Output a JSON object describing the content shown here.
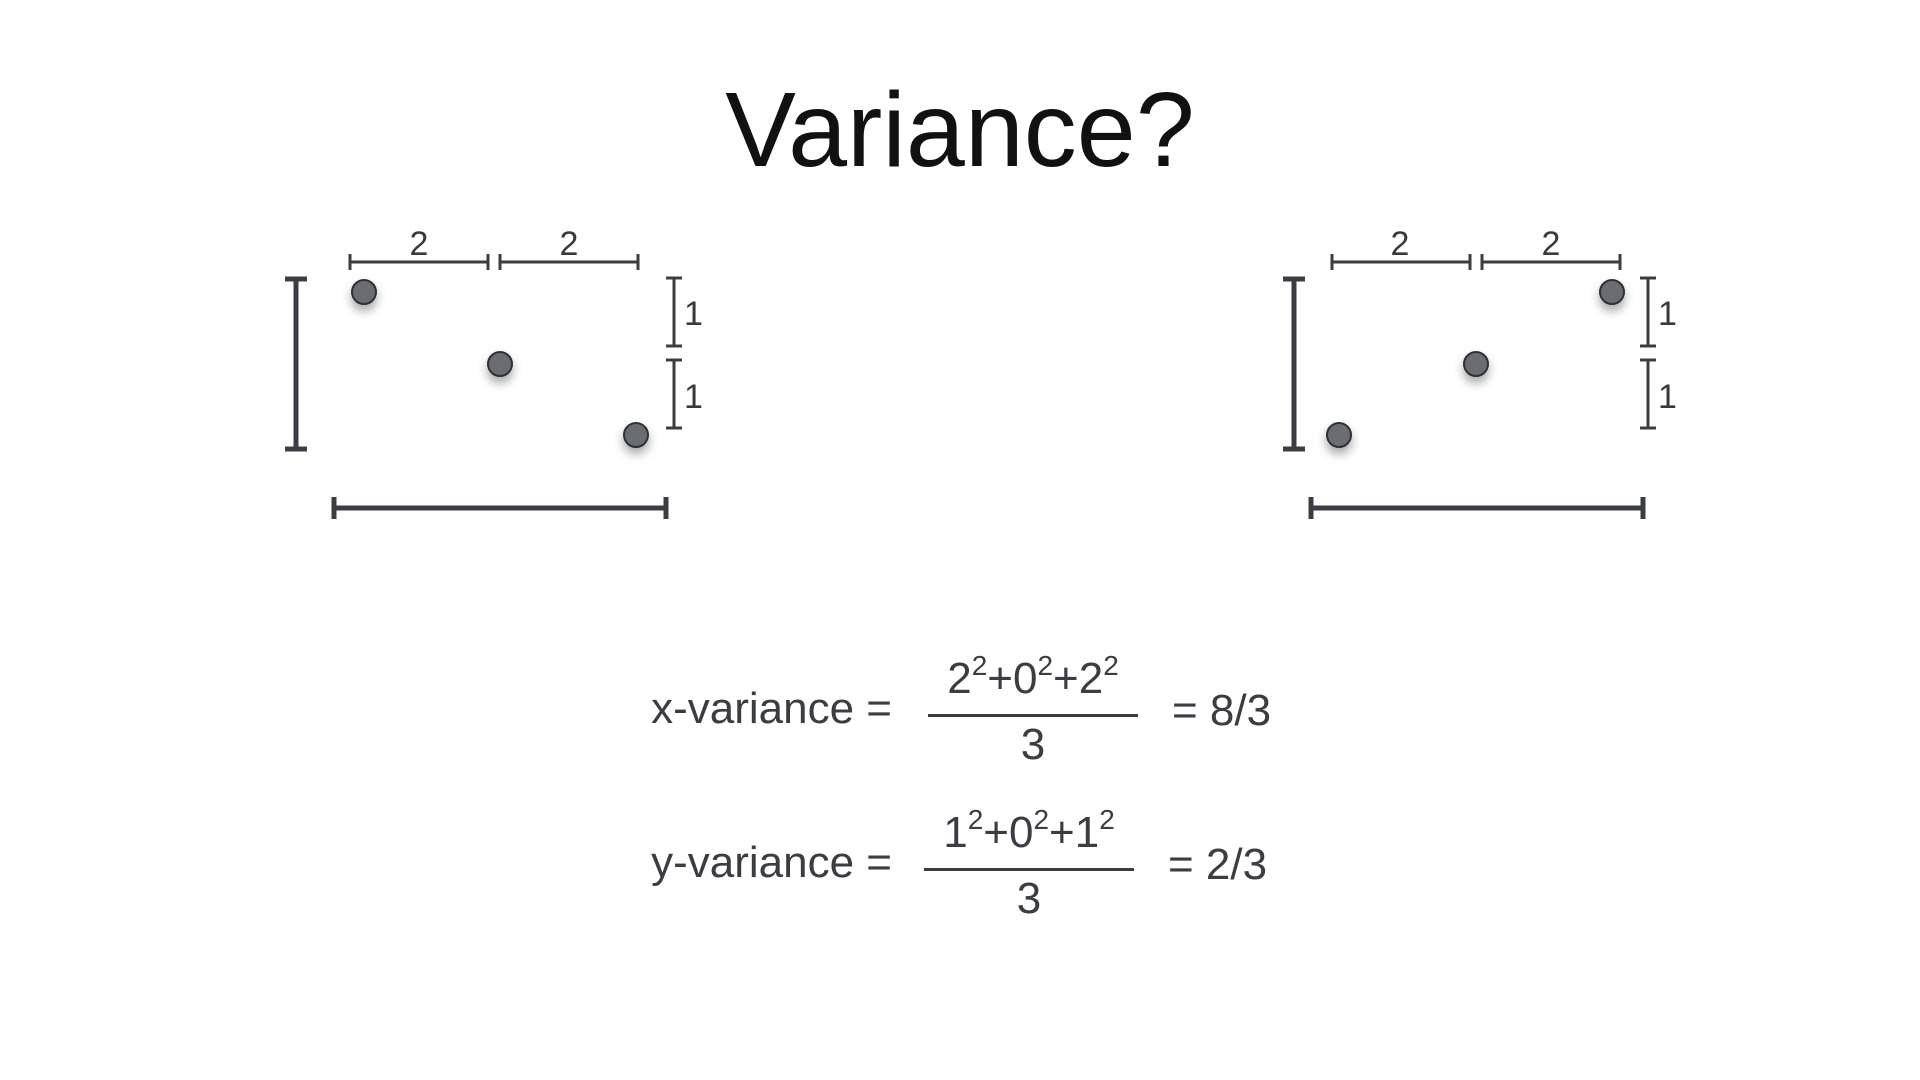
{
  "title": "Variance?",
  "diagram_left": {
    "top_spans": [
      "2",
      "2"
    ],
    "side_spans": [
      "1",
      "1"
    ]
  },
  "diagram_right": {
    "top_spans": [
      "2",
      "2"
    ],
    "side_spans": [
      "1",
      "1"
    ]
  },
  "formulas": {
    "x": {
      "lhs": "x-variance =",
      "terms": [
        {
          "base": "2",
          "exp": "2",
          "op": "+"
        },
        {
          "base": "0",
          "exp": "2",
          "op": "+"
        },
        {
          "base": "2",
          "exp": "2",
          "op": ""
        }
      ],
      "denominator": "3",
      "result": "= 8/3"
    },
    "y": {
      "lhs": "y-variance =",
      "terms": [
        {
          "base": "1",
          "exp": "2",
          "op": "+"
        },
        {
          "base": "0",
          "exp": "2",
          "op": "+"
        },
        {
          "base": "1",
          "exp": "2",
          "op": ""
        }
      ],
      "denominator": "3",
      "result": "= 2/3"
    }
  },
  "colors": {
    "point_fill": "#6b6e72",
    "point_stroke": "#2e3033",
    "bracket": "#3a3d42"
  }
}
